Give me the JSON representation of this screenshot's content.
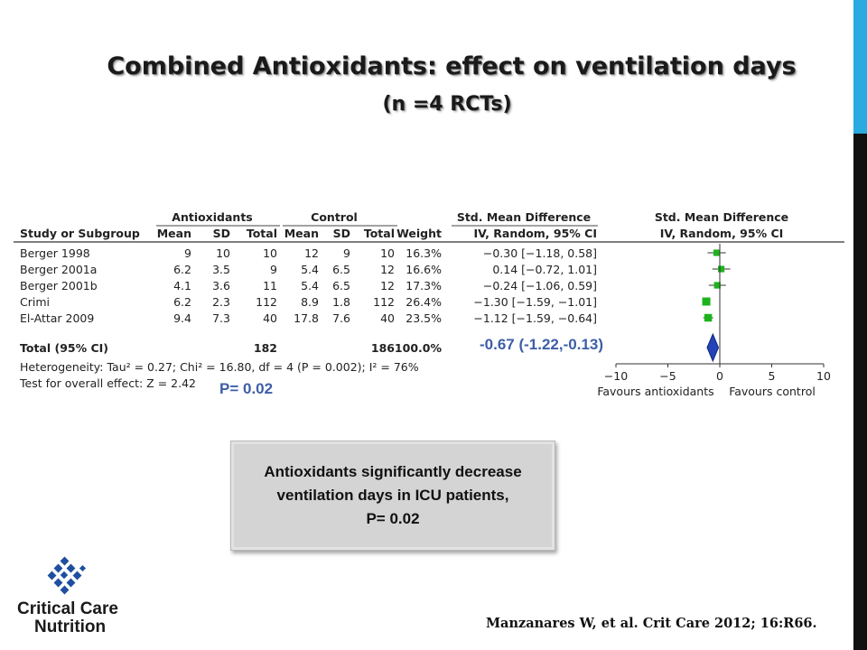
{
  "slide": {
    "title": "Combined Antioxidants: effect on ventilation days",
    "subtitle": "(n =4 RCTs)",
    "pooled_label": "-0.67 (-1.22,-0.13)",
    "p_label": "P= 0.02",
    "callout": [
      "Antioxidants significantly decrease",
      "ventilation days  in ICU patients,",
      "P= 0.02"
    ],
    "logo_text": [
      "Critical Care",
      "Nutrition"
    ],
    "citation": "Manzanares W, et al. Crit Care 2012; 16:R66.",
    "colors": {
      "accent": "#29aae1",
      "side_bar": "#111111",
      "study_marker": "#1db31d",
      "diamond": "#2343b7",
      "label_blue": "#3d5ea8",
      "logo_blue": "#1f4fa0"
    }
  },
  "chart_data": {
    "type": "forest",
    "group_headers": {
      "experimental": "Antioxidants",
      "control": "Control",
      "effect": "Std. Mean Difference",
      "plot": "Std. Mean Difference"
    },
    "columns": [
      "Study or Subgroup",
      "Mean",
      "SD",
      "Total",
      "Mean",
      "SD",
      "Total",
      "Weight",
      "IV, Random, 95% CI"
    ],
    "plot_header": "IV, Random, 95% CI",
    "studies": [
      {
        "name": "Berger 1998",
        "exp_mean": "9",
        "exp_sd": "10",
        "exp_total": "10",
        "ctl_mean": "12",
        "ctl_sd": "9",
        "ctl_total": "10",
        "weight": "16.3%",
        "ci_text": "−0.30 [−1.18, 0.58]",
        "est": -0.3,
        "lo": -1.18,
        "hi": 0.58
      },
      {
        "name": "Berger 2001a",
        "exp_mean": "6.2",
        "exp_sd": "3.5",
        "exp_total": "9",
        "ctl_mean": "5.4",
        "ctl_sd": "6.5",
        "ctl_total": "12",
        "weight": "16.6%",
        "ci_text": "0.14 [−0.72, 1.01]",
        "est": 0.14,
        "lo": -0.72,
        "hi": 1.01
      },
      {
        "name": "Berger 2001b",
        "exp_mean": "4.1",
        "exp_sd": "3.6",
        "exp_total": "11",
        "ctl_mean": "5.4",
        "ctl_sd": "6.5",
        "ctl_total": "12",
        "weight": "17.3%",
        "ci_text": "−0.24 [−1.06, 0.59]",
        "est": -0.24,
        "lo": -1.06,
        "hi": 0.59
      },
      {
        "name": "Crimi",
        "exp_mean": "6.2",
        "exp_sd": "2.3",
        "exp_total": "112",
        "ctl_mean": "8.9",
        "ctl_sd": "1.8",
        "ctl_total": "112",
        "weight": "26.4%",
        "ci_text": "−1.30 [−1.59, −1.01]",
        "est": -1.3,
        "lo": -1.59,
        "hi": -1.01
      },
      {
        "name": "El-Attar 2009",
        "exp_mean": "9.4",
        "exp_sd": "7.3",
        "exp_total": "40",
        "ctl_mean": "17.8",
        "ctl_sd": "7.6",
        "ctl_total": "40",
        "weight": "23.5%",
        "ci_text": "−1.12 [−1.59, −0.64]",
        "est": -1.12,
        "lo": -1.59,
        "hi": -0.64
      }
    ],
    "total": {
      "label": "Total (95% CI)",
      "exp_total": "182",
      "ctl_total": "186",
      "weight": "100.0%",
      "est": -0.67,
      "lo": -1.22,
      "hi": -0.13
    },
    "heterogeneity": "Heterogeneity: Tau² = 0.27; Chi² = 16.80, df = 4 (P = 0.002); I² = 76%",
    "overall_effect": "Test for overall effect: Z = 2.42",
    "axis": {
      "min": -10,
      "max": 10,
      "ticks": [
        -10,
        -5,
        0,
        5,
        10
      ],
      "tick_labels": [
        "−10",
        "−5",
        "0",
        "5",
        "10"
      ]
    },
    "favours_left": "Favours antioxidants",
    "favours_right": "Favours control"
  }
}
